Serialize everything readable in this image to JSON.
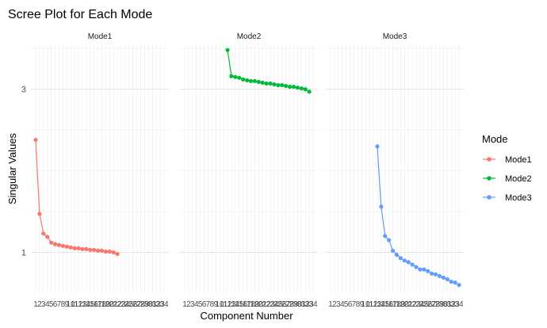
{
  "chart_data": {
    "type": "line",
    "title": "Scree Plot for Each Mode",
    "xlabel": "Component Number",
    "ylabel": "Singular Values",
    "legend": {
      "title": "Mode",
      "position": "right"
    },
    "grid": true,
    "xlim": [
      1,
      34
    ],
    "ylim": [
      0.5,
      3.55
    ],
    "yticks": [
      1,
      3
    ],
    "xticks_visible": [
      "1",
      "3",
      "5",
      "7",
      "9",
      "11",
      "13",
      "15",
      "17",
      "19",
      "21",
      "23",
      "25",
      "27",
      "29",
      "31",
      "33",
      "34"
    ],
    "panels": [
      {
        "strip": "Mode1",
        "name": "Mode1",
        "color": "#F8766D",
        "x": [
          1,
          2,
          3,
          4,
          5,
          6,
          7,
          8,
          9,
          10,
          11,
          12,
          13,
          14,
          15,
          16,
          17,
          18,
          19,
          20,
          21,
          22
        ],
        "values": [
          2.38,
          1.47,
          1.23,
          1.19,
          1.12,
          1.1,
          1.09,
          1.08,
          1.07,
          1.06,
          1.05,
          1.05,
          1.04,
          1.04,
          1.03,
          1.03,
          1.02,
          1.02,
          1.01,
          1.01,
          1.0,
          0.98
        ]
      },
      {
        "strip": "Mode2",
        "name": "Mode2",
        "color": "#00BA38",
        "x": [
          12,
          13,
          14,
          15,
          16,
          17,
          18,
          19,
          20,
          21,
          22,
          23,
          24,
          25,
          26,
          27,
          28,
          29,
          30,
          31,
          32,
          33
        ],
        "values": [
          3.48,
          3.16,
          3.15,
          3.14,
          3.12,
          3.11,
          3.1,
          3.1,
          3.09,
          3.08,
          3.07,
          3.07,
          3.06,
          3.05,
          3.05,
          3.04,
          3.03,
          3.03,
          3.02,
          3.01,
          3.0,
          2.97
        ]
      },
      {
        "strip": "Mode3",
        "name": "Mode3",
        "color": "#619CFF",
        "x": [
          13,
          14,
          15,
          16,
          17,
          18,
          19,
          20,
          21,
          22,
          23,
          24,
          25,
          26,
          27,
          28,
          29,
          30,
          31,
          32,
          33,
          34
        ],
        "values": [
          2.3,
          1.56,
          1.2,
          1.15,
          1.02,
          0.97,
          0.93,
          0.9,
          0.88,
          0.85,
          0.82,
          0.79,
          0.79,
          0.77,
          0.74,
          0.73,
          0.71,
          0.69,
          0.67,
          0.64,
          0.63,
          0.6
        ]
      }
    ]
  }
}
